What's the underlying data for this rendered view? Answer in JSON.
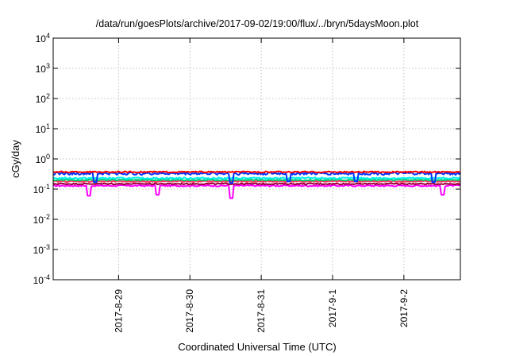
{
  "chart_data": {
    "type": "line",
    "title": "/data/run/goesPlots/archive/2017-09-02/19:00/flux/../bryn/5daysMoon.plot",
    "xlabel": "Coordinated Universal Time (UTC)",
    "ylabel": "cGy/day",
    "yscale": "log",
    "ylim": [
      0.0001,
      10000
    ],
    "y_ticks": [
      {
        "value": 0.0001,
        "base": "10",
        "exp": "-4"
      },
      {
        "value": 0.001,
        "base": "10",
        "exp": "-3"
      },
      {
        "value": 0.01,
        "base": "10",
        "exp": "-2"
      },
      {
        "value": 0.1,
        "base": "10",
        "exp": "-1"
      },
      {
        "value": 1,
        "base": "10",
        "exp": "0"
      },
      {
        "value": 10,
        "base": "10",
        "exp": "1"
      },
      {
        "value": 100,
        "base": "10",
        "exp": "2"
      },
      {
        "value": 1000,
        "base": "10",
        "exp": "3"
      },
      {
        "value": 10000,
        "base": "10",
        "exp": "4"
      }
    ],
    "xlim": [
      "2017-08-28 02:00",
      "2017-09-02 19:00"
    ],
    "x_ticks": [
      {
        "value": "2017-08-29 00:00",
        "label": "2017-8-29"
      },
      {
        "value": "2017-08-30 00:00",
        "label": "2017-8-30"
      },
      {
        "value": "2017-08-31 00:00",
        "label": "2017-8-31"
      },
      {
        "value": "2017-09-01 00:00",
        "label": "2017-9-1"
      },
      {
        "value": "2017-09-02 00:00",
        "label": "2017-9-2"
      }
    ],
    "grid": true,
    "legend": "none",
    "series": [
      {
        "color": "#ff00ff",
        "level": 0.13,
        "jitter": 0.06,
        "dips": [
          [
            "2017-08-28 14:00",
            0.06
          ],
          [
            "2017-08-29 13:00",
            0.065
          ],
          [
            "2017-08-30 14:00",
            0.05
          ],
          [
            "2017-09-02 13:00",
            0.065
          ]
        ]
      },
      {
        "color": "#990033",
        "level": 0.15,
        "jitter": 0.05,
        "dips": []
      },
      {
        "color": "#ff3366",
        "level": 0.18,
        "jitter": 0.05,
        "dips": []
      },
      {
        "color": "#00cc66",
        "level": 0.2,
        "jitter": 0.05,
        "dips": []
      },
      {
        "color": "#00eeee",
        "level": 0.23,
        "jitter": 0.06,
        "dips": []
      },
      {
        "color": "#0033ff",
        "level": 0.33,
        "jitter": 0.1,
        "dips": [
          [
            "2017-08-28 16:00",
            0.17
          ],
          [
            "2017-08-30 14:00",
            0.16
          ],
          [
            "2017-08-31 09:00",
            0.18
          ],
          [
            "2017-09-01 08:00",
            0.18
          ],
          [
            "2017-09-02 10:00",
            0.17
          ]
        ]
      },
      {
        "color": "#ff0000",
        "level": 0.37,
        "jitter": 0.05,
        "dips": []
      }
    ]
  }
}
